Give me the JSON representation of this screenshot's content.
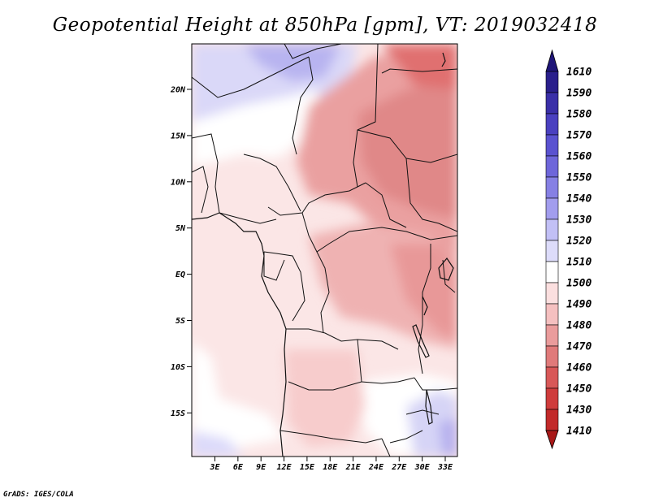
{
  "title": "Geopotential Height at 850hPa [gpm], VT: 2019032418",
  "credit": "GrADS: IGES/COLA",
  "map": {
    "lat_labels": [
      "20N",
      "15N",
      "10N",
      "5N",
      "EQ",
      "5S",
      "10S",
      "15S"
    ],
    "lon_labels": [
      "3E",
      "6E",
      "9E",
      "12E",
      "15E",
      "18E",
      "21E",
      "24E",
      "27E",
      "30E",
      "33E"
    ]
  },
  "colorbar": {
    "levels": [
      "1610",
      "1590",
      "1580",
      "1570",
      "1560",
      "1550",
      "1540",
      "1530",
      "1520",
      "1510",
      "1500",
      "1490",
      "1480",
      "1470",
      "1460",
      "1450",
      "1430",
      "1410"
    ],
    "colors": [
      "#2a1f8c",
      "#3a2fa8",
      "#4a40c0",
      "#5a52d0",
      "#6e66da",
      "#8680e4",
      "#a29dee",
      "#c2c0f6",
      "#dddcfa",
      "#ffffff",
      "#fbdfdf",
      "#f5c0c0",
      "#ea9c9c",
      "#e07a7a",
      "#d85858",
      "#cf3c3c",
      "#c22a2a",
      "#b01c1c"
    ],
    "top_color": "#1f1578",
    "bottom_color": "#a81818"
  },
  "colors": {
    "map_background": "#fbe6e6"
  }
}
